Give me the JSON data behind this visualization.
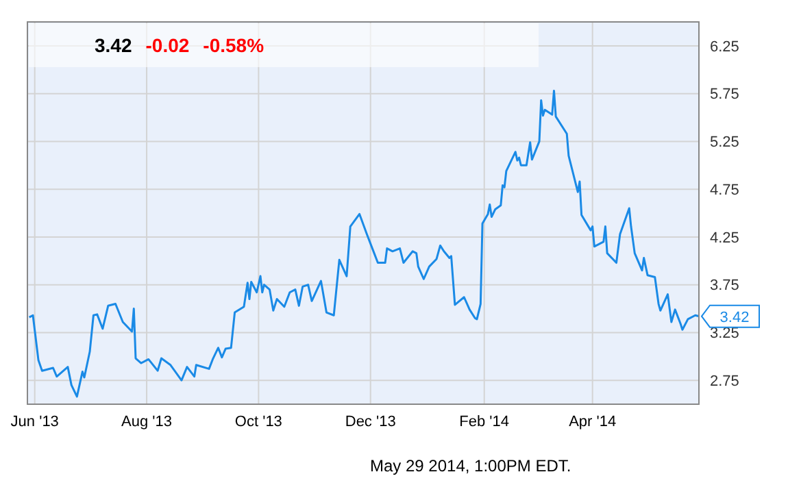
{
  "chart_data": {
    "type": "line",
    "annotations": [
      "3.42",
      "-0.02",
      "-0.58%",
      "May 29 2014, 1:00PM EDT."
    ],
    "x": [
      "2013-05-29",
      "2013-05-31",
      "2013-06-03",
      "2013-06-05",
      "2013-06-11",
      "2013-06-13",
      "2013-06-19",
      "2013-06-21",
      "2013-06-24",
      "2013-06-27",
      "2013-06-28",
      "2013-07-01",
      "2013-07-03",
      "2013-07-05",
      "2013-07-08",
      "2013-07-11",
      "2013-07-15",
      "2013-07-19",
      "2013-07-24",
      "2013-07-25",
      "2013-07-26",
      "2013-07-29",
      "2013-08-02",
      "2013-08-07",
      "2013-08-09",
      "2013-08-14",
      "2013-08-20",
      "2013-08-23",
      "2013-08-27",
      "2013-08-28",
      "2013-09-04",
      "2013-09-06",
      "2013-09-09",
      "2013-09-11",
      "2013-09-13",
      "2013-09-16",
      "2013-09-18",
      "2013-09-23",
      "2013-09-25",
      "2013-09-26",
      "2013-09-27",
      "2013-09-30",
      "2013-10-02",
      "2013-10-03",
      "2013-10-04",
      "2013-10-07",
      "2013-10-09",
      "2013-10-11",
      "2013-10-15",
      "2013-10-18",
      "2013-10-21",
      "2013-10-23",
      "2013-10-25",
      "2013-10-28",
      "2013-10-30",
      "2013-11-04",
      "2013-11-07",
      "2013-11-11",
      "2013-11-14",
      "2013-11-18",
      "2013-11-20",
      "2013-11-25",
      "2013-11-29",
      "2013-12-03",
      "2013-12-05",
      "2013-12-09",
      "2013-12-10",
      "2013-12-13",
      "2013-12-17",
      "2013-12-19",
      "2013-12-24",
      "2013-12-26",
      "2013-12-27",
      "2013-12-30",
      "2014-01-02",
      "2014-01-06",
      "2014-01-08",
      "2014-01-10",
      "2014-01-13",
      "2014-01-14",
      "2014-01-16",
      "2014-01-21",
      "2014-01-24",
      "2014-01-27",
      "2014-01-28",
      "2014-01-30",
      "2014-01-31",
      "2014-02-03",
      "2014-02-04",
      "2014-02-05",
      "2014-02-07",
      "2014-02-10",
      "2014-02-11",
      "2014-02-12",
      "2014-02-13",
      "2014-02-18",
      "2014-02-19",
      "2014-02-20",
      "2014-02-21",
      "2014-02-24",
      "2014-02-26",
      "2014-02-27",
      "2014-03-03",
      "2014-03-04",
      "2014-03-05",
      "2014-03-06",
      "2014-03-10",
      "2014-03-11",
      "2014-03-12",
      "2014-03-18",
      "2014-03-19",
      "2014-03-24",
      "2014-03-25",
      "2014-03-26",
      "2014-03-31",
      "2014-04-01",
      "2014-04-02",
      "2014-04-07",
      "2014-04-08",
      "2014-04-09",
      "2014-04-14",
      "2014-04-16",
      "2014-04-21",
      "2014-04-22",
      "2014-04-24",
      "2014-04-28",
      "2014-04-29",
      "2014-05-01",
      "2014-05-05",
      "2014-05-07",
      "2014-05-08",
      "2014-05-12",
      "2014-05-14",
      "2014-05-16",
      "2014-05-19",
      "2014-05-20",
      "2014-05-23",
      "2014-05-27",
      "2014-05-29"
    ],
    "series": [
      {
        "color": "#1a8ae6",
        "values": [
          3.41,
          3.43,
          2.96,
          2.85,
          2.88,
          2.79,
          2.89,
          2.7,
          2.58,
          2.84,
          2.78,
          3.05,
          3.43,
          3.44,
          3.29,
          3.53,
          3.55,
          3.36,
          3.26,
          3.5,
          2.98,
          2.93,
          2.97,
          2.85,
          2.98,
          2.91,
          2.75,
          2.89,
          2.79,
          2.91,
          2.87,
          2.97,
          3.09,
          2.99,
          3.08,
          3.09,
          3.46,
          3.52,
          3.77,
          3.6,
          3.78,
          3.67,
          3.84,
          3.67,
          3.75,
          3.7,
          3.48,
          3.6,
          3.52,
          3.67,
          3.7,
          3.53,
          3.73,
          3.75,
          3.58,
          3.79,
          3.46,
          3.43,
          4.01,
          3.84,
          4.36,
          4.49,
          4.28,
          4.08,
          3.98,
          3.98,
          4.13,
          4.1,
          4.13,
          3.98,
          4.1,
          4.08,
          3.94,
          3.81,
          3.94,
          4.02,
          4.16,
          4.1,
          4.03,
          4.05,
          3.54,
          3.62,
          3.49,
          3.4,
          3.39,
          3.55,
          4.39,
          4.49,
          4.59,
          4.46,
          4.54,
          4.58,
          4.79,
          4.77,
          4.94,
          5.14,
          5.05,
          5.08,
          5.0,
          5.0,
          5.24,
          5.06,
          5.25,
          5.68,
          5.52,
          5.58,
          5.53,
          5.78,
          5.51,
          5.33,
          5.1,
          4.72,
          4.83,
          4.48,
          4.32,
          4.36,
          4.15,
          4.2,
          4.36,
          4.08,
          3.98,
          4.28,
          4.55,
          4.36,
          4.08,
          3.9,
          4.03,
          3.85,
          3.83,
          3.55,
          3.48,
          3.65,
          3.36,
          3.49,
          3.34,
          3.28,
          3.39,
          3.43,
          3.42
        ],
        "value_labels": [
          null,
          null,
          null,
          null,
          null,
          null,
          null,
          null,
          null,
          null,
          null,
          null,
          null,
          null,
          null,
          null,
          null,
          null,
          null,
          null,
          null,
          null,
          null,
          null,
          null,
          null,
          null,
          null,
          null,
          null,
          null,
          null,
          null,
          null,
          null,
          null,
          null,
          null,
          null,
          null,
          null,
          null,
          null,
          null,
          null,
          null,
          null,
          null,
          null,
          null,
          null,
          null,
          null,
          null,
          null,
          null,
          null,
          null,
          null,
          null,
          null,
          null,
          null,
          null,
          null,
          null,
          null,
          null,
          null,
          null,
          null,
          null,
          null,
          null,
          null,
          null,
          null,
          null,
          null,
          null,
          null,
          null,
          null,
          null,
          null,
          null,
          null,
          null,
          null,
          null,
          null,
          null,
          null,
          null,
          null,
          null,
          null,
          null,
          null,
          null,
          null,
          null,
          null,
          null,
          null,
          null,
          null,
          null,
          null,
          null,
          null,
          null,
          null,
          null,
          null,
          null,
          null,
          null,
          null,
          null,
          null,
          null,
          null,
          null,
          null,
          null,
          null,
          null,
          null,
          null,
          null,
          null,
          null,
          null,
          null,
          null,
          null,
          null,
          "3.42"
        ]
      }
    ],
    "xlim": [
      "2013-05-28",
      "2014-05-29"
    ],
    "xticks": [
      {
        "value": "2013-06-01",
        "label": "Jun '13"
      },
      {
        "value": "2013-08-01",
        "label": "Aug '13"
      },
      {
        "value": "2013-10-01",
        "label": "Oct '13"
      },
      {
        "value": "2013-12-01",
        "label": "Dec '13"
      },
      {
        "value": "2014-02-01",
        "label": "Feb '14"
      },
      {
        "value": "2014-04-01",
        "label": "Apr '14"
      }
    ],
    "ylim": [
      2.5,
      6.5
    ],
    "yticks": [
      2.75,
      3.25,
      3.75,
      4.25,
      4.75,
      5.25,
      5.75,
      6.25
    ],
    "grid": true,
    "marker": "none",
    "line_style": "solid"
  }
}
